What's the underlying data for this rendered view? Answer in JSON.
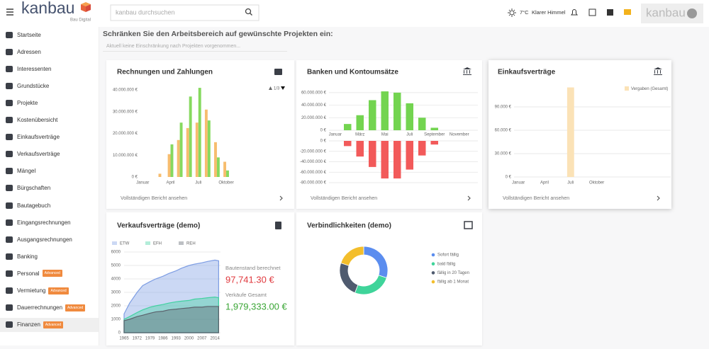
{
  "header": {
    "logo": "kanbau",
    "logo_tagline": "Bau Digital",
    "search_placeholder": "kanbau durchsuchen",
    "weather": "7°C",
    "weather_text": "Klarer Himmel",
    "user": "kanbau"
  },
  "sidebar": {
    "items": [
      {
        "label": "Startseite"
      },
      {
        "label": "Adressen"
      },
      {
        "label": "Interessenten"
      },
      {
        "label": "Grundstücke"
      },
      {
        "label": "Projekte"
      },
      {
        "label": "Kostenübersicht"
      },
      {
        "label": "Einkaufsverträge"
      },
      {
        "label": "Verkaufsverträge"
      },
      {
        "label": "Mängel"
      },
      {
        "label": "Bürgschaften"
      },
      {
        "label": "Bautagebuch"
      },
      {
        "label": "Eingangsrechnungen"
      },
      {
        "label": "Ausgangsrechnungen"
      },
      {
        "label": "Banking"
      },
      {
        "label": "Personal",
        "badge": "Advanced"
      },
      {
        "label": "Vermietung",
        "badge": "Advanced"
      },
      {
        "label": "Dauerrechnungen",
        "badge": "Advanced"
      },
      {
        "label": "Finanzen",
        "badge": "Advanced"
      }
    ]
  },
  "filter": {
    "title": "Schränken Sie den Arbeitsbereich auf gewünschte Projekten ein:",
    "note": "Aktuell keine Einschränkung nach Projekten vorgenommen..."
  },
  "chart_data": [
    {
      "type": "bar",
      "title": "Rechnungen und Zahlungen",
      "link": "Vollständigen Bericht ansehen",
      "legend_page": "1/3",
      "categories": [
        "Januar",
        null,
        null,
        null,
        null,
        null,
        "April",
        null,
        null,
        null,
        null,
        null,
        "Juli",
        null,
        null,
        null,
        null,
        null,
        "Oktober",
        null,
        null,
        null,
        null,
        null
      ],
      "series": [
        {
          "color": "#f7bd6e",
          "values": [
            0,
            0,
            0,
            0,
            1500000,
            0,
            10500000,
            0,
            17000000,
            0,
            22500000,
            0,
            25000000,
            0,
            31000000,
            0,
            16000000,
            0,
            7000000,
            0,
            0,
            0,
            0,
            0
          ]
        },
        {
          "color": "#86d95f",
          "values": [
            0,
            0,
            0,
            0,
            0,
            0,
            15000000,
            0,
            25000000,
            0,
            37000000,
            0,
            41000000,
            0,
            26000000,
            0,
            9000000,
            0,
            3000000,
            0,
            0,
            0,
            0,
            0
          ]
        }
      ],
      "ylim": [
        0,
        42000000
      ],
      "yticks": [
        {
          "value": 0,
          "label": "0 €"
        },
        {
          "value": 10000000,
          "label": "10.000.000 €"
        },
        {
          "value": 20000000,
          "label": "20.000.000 €"
        },
        {
          "value": 30000000,
          "label": "30.000.000 €"
        },
        {
          "value": 40000000,
          "label": "40.000.000 €"
        }
      ],
      "grid": false
    },
    {
      "type": "bar",
      "title": "Banken und Kontoumsätze",
      "link": "Vollständigen Bericht ansehen",
      "categories": [
        "Januar",
        null,
        "März",
        null,
        "Mai",
        null,
        "Juli",
        null,
        "September",
        null,
        "November",
        null
      ],
      "series": [
        {
          "color": "#73d450",
          "values": [
            0,
            10000000,
            24000000,
            48000000,
            62000000,
            60000000,
            43000000,
            20000000,
            4000000,
            0,
            0,
            0
          ]
        },
        {
          "color": "#f25a5a",
          "axis": "y2",
          "values": [
            0,
            -10000000,
            -30000000,
            -50000000,
            -72000000,
            -72000000,
            -55000000,
            -28000000,
            -7000000,
            0,
            0,
            0
          ]
        }
      ],
      "ylim": [
        0,
        70000000
      ],
      "yticks": [
        {
          "value": 0,
          "label": "0 €"
        },
        {
          "value": 20000000,
          "label": "20.000.000 €"
        },
        {
          "value": 40000000,
          "label": "40.000.000 €"
        },
        {
          "value": 60000000,
          "label": "60.000.000 €"
        }
      ],
      "y2lim": [
        -80000000,
        0
      ],
      "y2ticks": [
        {
          "value": 0,
          "label": "0 €"
        },
        {
          "value": -20000000,
          "label": "-20.000.000 €"
        },
        {
          "value": -40000000,
          "label": "-40.000.000 €"
        },
        {
          "value": -60000000,
          "label": "-60.000.000 €"
        },
        {
          "value": -80000000,
          "label": "-80.000.000 €"
        }
      ],
      "grid": true
    },
    {
      "type": "bar",
      "title": "Einkaufsverträge",
      "link": "Vollständigen Bericht ansehen",
      "categories": [
        "Januar",
        null,
        null,
        "April",
        null,
        null,
        "Juli",
        null,
        null,
        "Oktober",
        null,
        null,
        null,
        null,
        null,
        null,
        null,
        null
      ],
      "series": [
        {
          "name": "Vergaben (Gesamt)",
          "color": "#fbe2b6",
          "values": [
            0,
            0,
            0,
            0,
            0,
            0,
            115000,
            0,
            0,
            0,
            0,
            0,
            0,
            0,
            0,
            0,
            0,
            0
          ]
        }
      ],
      "ylim": [
        0,
        120000
      ],
      "yticks": [
        {
          "value": 0,
          "label": "0 €"
        },
        {
          "value": 30000,
          "label": "30.000 €"
        },
        {
          "value": 60000,
          "label": "60.000 €"
        },
        {
          "value": 90000,
          "label": "90.000 €"
        }
      ],
      "grid": true,
      "legend": "top-right"
    },
    {
      "type": "area",
      "title": "Verkaufsverträge (demo)",
      "x": [
        1965,
        1968,
        1972,
        1975,
        1979,
        1982,
        1986,
        1989,
        1993,
        1996,
        2000,
        2003,
        2007,
        2010,
        2014,
        2016
      ],
      "series": [
        {
          "name": "ETW",
          "color": "#7d9de3",
          "values": [
            1400,
            2200,
            3000,
            3500,
            3800,
            4000,
            4200,
            4400,
            4600,
            4800,
            5000,
            5100,
            5200,
            5300,
            5400,
            5350
          ]
        },
        {
          "name": "EFH",
          "color": "#41d1a0",
          "values": [
            1000,
            1200,
            1500,
            1700,
            1900,
            2000,
            2100,
            2200,
            2300,
            2350,
            2400,
            2500,
            2550,
            2600,
            2650,
            2600
          ]
        },
        {
          "name": "REH",
          "color": "#5b626c",
          "values": [
            900,
            1000,
            1200,
            1300,
            1450,
            1550,
            1600,
            1700,
            1750,
            1800,
            1850,
            1900,
            1900,
            1950,
            1950,
            1950
          ]
        }
      ],
      "xlim": [
        1965,
        2017
      ],
      "xticks": [
        1965,
        1972,
        1979,
        1986,
        1993,
        2000,
        2007,
        2014
      ],
      "ylim": [
        0,
        6000
      ],
      "yticks": [
        0,
        1000,
        2000,
        3000,
        4000,
        5000,
        6000
      ],
      "grid": true,
      "annotations": [
        {
          "label": "Bautenstand berechnet",
          "value": "97,741.30 €",
          "color": "#e0393e"
        },
        {
          "label": "Verkäufe Gesamt",
          "value": "1,979,333.00 €",
          "color": "#3aa635"
        }
      ]
    },
    {
      "type": "pie",
      "title": "Verbindlichkeiten (demo)",
      "donut": true,
      "categories": [
        "Sofort fällig",
        "bald fällig",
        "fällig in 20 Tagen",
        "fällig ab 1 Monat"
      ],
      "values": [
        30,
        26,
        24,
        20
      ],
      "colors": [
        "#5b8def",
        "#3fd49a",
        "#4f5b6f",
        "#f3be2c"
      ]
    }
  ]
}
